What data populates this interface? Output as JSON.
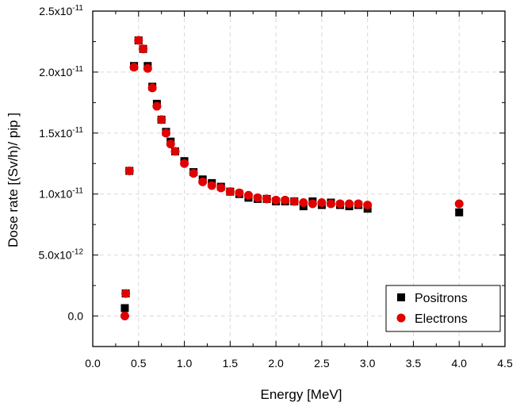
{
  "chart_data": {
    "type": "scatter",
    "title": "",
    "xlabel": "Energy [MeV]",
    "ylabel": "Dose rate [(Sv/h)/ pip ]",
    "xlim": [
      0.0,
      4.5
    ],
    "ylim": [
      -2.5e-12,
      2.5e-11
    ],
    "grid": true,
    "legend_position": "bottom-right",
    "x_ticks": [
      "0.0",
      "0.5",
      "1.0",
      "1.5",
      "2.0",
      "2.5",
      "3.0",
      "3.5",
      "4.0",
      "4.5"
    ],
    "x_tick_values": [
      0.0,
      0.5,
      1.0,
      1.5,
      2.0,
      2.5,
      3.0,
      3.5,
      4.0,
      4.5
    ],
    "y_ticks": [
      {
        "mant": "0.0",
        "exp": "",
        "value": 0
      },
      {
        "mant": "5.0x10",
        "exp": "-12",
        "value": 5e-12
      },
      {
        "mant": "1.0x10",
        "exp": "-11",
        "value": 1e-11
      },
      {
        "mant": "1.5x10",
        "exp": "-11",
        "value": 1.5e-11
      },
      {
        "mant": "2.0x10",
        "exp": "-11",
        "value": 2e-11
      },
      {
        "mant": "2.5x10",
        "exp": "-11",
        "value": 2.5e-11
      }
    ],
    "series": [
      {
        "name": "Positrons",
        "marker": "square",
        "color": "#000000",
        "x": [
          0.35,
          0.36,
          0.4,
          0.45,
          0.5,
          0.55,
          0.6,
          0.65,
          0.7,
          0.75,
          0.8,
          0.85,
          0.9,
          1.0,
          1.1,
          1.2,
          1.3,
          1.4,
          1.5,
          1.6,
          1.7,
          1.8,
          1.9,
          2.0,
          2.1,
          2.2,
          2.3,
          2.4,
          2.5,
          2.6,
          2.7,
          2.8,
          2.9,
          3.0,
          4.0
        ],
        "y": [
          6.5e-13,
          1.85e-12,
          1.19e-11,
          2.05e-11,
          2.26e-11,
          2.19e-11,
          2.05e-11,
          1.88e-11,
          1.74e-11,
          1.61e-11,
          1.51e-11,
          1.43e-11,
          1.35e-11,
          1.27e-11,
          1.18e-11,
          1.12e-11,
          1.09e-11,
          1.06e-11,
          1.02e-11,
          1e-11,
          9.7e-12,
          9.6e-12,
          9.6e-12,
          9.4e-12,
          9.4e-12,
          9.4e-12,
          9e-12,
          9.4e-12,
          9.1e-12,
          9.3e-12,
          9.1e-12,
          9e-12,
          9.1e-12,
          8.8e-12,
          8.5e-12
        ]
      },
      {
        "name": "Electrons",
        "marker": "circle",
        "color": "#e00000",
        "x": [
          0.35,
          0.36,
          0.4,
          0.45,
          0.5,
          0.55,
          0.6,
          0.65,
          0.7,
          0.75,
          0.8,
          0.85,
          0.9,
          1.0,
          1.1,
          1.2,
          1.3,
          1.4,
          1.5,
          1.6,
          1.7,
          1.8,
          1.9,
          2.0,
          2.1,
          2.2,
          2.3,
          2.4,
          2.5,
          2.6,
          2.7,
          2.8,
          2.9,
          3.0,
          4.0
        ],
        "y": [
          0.0,
          1.85e-12,
          1.19e-11,
          2.04e-11,
          2.26e-11,
          2.19e-11,
          2.03e-11,
          1.87e-11,
          1.72e-11,
          1.61e-11,
          1.5e-11,
          1.41e-11,
          1.35e-11,
          1.25e-11,
          1.17e-11,
          1.1e-11,
          1.07e-11,
          1.05e-11,
          1.02e-11,
          1.01e-11,
          9.9e-12,
          9.7e-12,
          9.6e-12,
          9.5e-12,
          9.5e-12,
          9.4e-12,
          9.3e-12,
          9.2e-12,
          9.3e-12,
          9.2e-12,
          9.2e-12,
          9.2e-12,
          9.2e-12,
          9.1e-12,
          9.2e-12
        ]
      }
    ]
  }
}
